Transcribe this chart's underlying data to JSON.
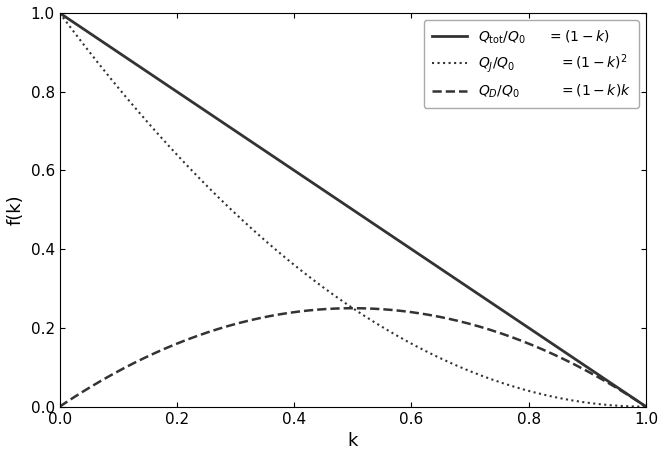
{
  "title": "",
  "xlabel": "k",
  "ylabel": "f(k)",
  "xlim": [
    0.0,
    1.0
  ],
  "ylim": [
    0.0,
    1.0
  ],
  "xticks": [
    0.0,
    0.2,
    0.4,
    0.6,
    0.8,
    1.0
  ],
  "yticks": [
    0.0,
    0.2,
    0.4,
    0.6,
    0.8,
    1.0
  ],
  "line_color": "#333333",
  "background_color": "#ffffff",
  "legend": {
    "entries": [
      {
        "label_left": "$Q_{\\rm tot}/Q_0$",
        "label_right": "$= (1-k)$",
        "linestyle": "solid",
        "linewidth": 2.0
      },
      {
        "label_left": "$Q_J/Q_0$",
        "label_right": "$= (1-k)^2$",
        "linestyle": "dotted",
        "linewidth": 1.5
      },
      {
        "label_left": "$Q_D/Q_0$",
        "label_right": "$= (1-k)k$",
        "linestyle": "dashed",
        "linewidth": 1.8
      }
    ]
  }
}
